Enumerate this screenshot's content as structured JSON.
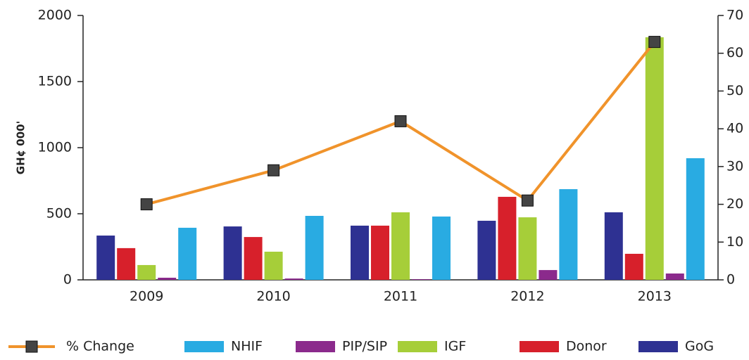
{
  "chart_data": {
    "type": "bar",
    "y_label": "GH¢ 000'",
    "categories": [
      "2009",
      "2010",
      "2011",
      "2012",
      "2013"
    ],
    "series": [
      {
        "name": "% Change",
        "type": "line",
        "axis": "y2",
        "color": "#f0932b",
        "values": [
          20,
          29,
          42,
          21,
          63
        ]
      },
      {
        "name": "NHIF",
        "color": "#29abe2",
        "values": [
          394,
          484,
          479,
          686,
          920
        ]
      },
      {
        "name": "PIP/SIP",
        "color": "#8b2a8c",
        "values": [
          16,
          10,
          5,
          74,
          48
        ]
      },
      {
        "name": "IGF",
        "color": "#a6ce39",
        "values": [
          112,
          213,
          511,
          473,
          1835
        ]
      },
      {
        "name": "Donor",
        "color": "#d7202b",
        "values": [
          240,
          324,
          410,
          628,
          197
        ]
      },
      {
        "name": "GoG",
        "color": "#2e3192",
        "values": [
          335,
          404,
          410,
          447,
          511
        ]
      }
    ],
    "ylim": [
      0,
      2000
    ],
    "yticks": [
      0,
      500,
      1000,
      1500,
      2000
    ],
    "y2lim": [
      0,
      70
    ],
    "y2ticks": [
      0,
      10,
      20,
      30,
      40,
      50,
      60,
      70
    ],
    "legend": "bottom"
  }
}
